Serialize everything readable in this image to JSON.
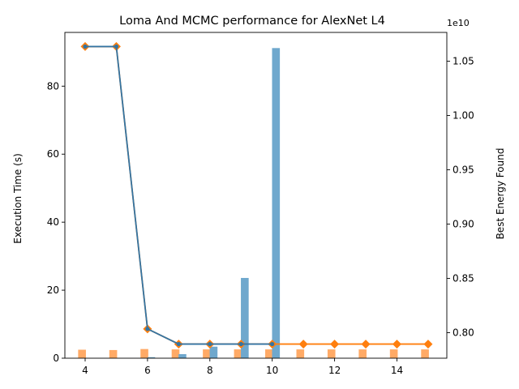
{
  "chart_data": {
    "type": "bar",
    "title": "Loma And MCMC performance for AlexNet L4",
    "ylabel_left": "Execution Time (s)",
    "ylabel_right": "Best Energy Found",
    "right_axis_multiplier": "1e10",
    "xlim": [
      3.35,
      15.6
    ],
    "ylim_left": [
      0,
      95.8
    ],
    "ylim_right": [
      0.7765,
      1.0765
    ],
    "x_ticks": [
      4,
      6,
      8,
      10,
      12,
      14
    ],
    "y_ticks_left": [
      0,
      20,
      40,
      60,
      80
    ],
    "y_ticks_right": [
      0.8,
      0.85,
      0.9,
      0.95,
      1.0,
      1.05
    ],
    "y_tick_labels_right": [
      "0.80",
      "0.85",
      "0.90",
      "0.95",
      "1.00",
      "1.05"
    ],
    "bar_width": 0.25,
    "series": [
      {
        "kind": "bar",
        "axis": "left",
        "offset": -0.1,
        "color": "#ffaa66",
        "x": [
          4,
          5,
          6,
          7,
          8,
          9,
          10,
          11,
          12,
          13,
          14,
          15
        ],
        "values": [
          2.5,
          2.4,
          2.7,
          2.6,
          2.6,
          2.6,
          2.6,
          2.6,
          2.6,
          2.6,
          2.6,
          2.6
        ]
      },
      {
        "kind": "bar",
        "axis": "left",
        "offset": 0.12,
        "color": "#6fa8cd",
        "x": [
          4,
          5,
          6,
          7,
          8,
          9,
          10
        ],
        "values": [
          0,
          0,
          0.3,
          1.2,
          3.4,
          23.6,
          91.2
        ]
      },
      {
        "kind": "line",
        "axis": "right",
        "color": "#ff7f0e",
        "marker": "diamond",
        "x": [
          4,
          5,
          6,
          7,
          8,
          9,
          10,
          11,
          12,
          13,
          14,
          15
        ],
        "values": [
          1.0635,
          1.0635,
          0.8035,
          0.7895,
          0.7895,
          0.7895,
          0.7895,
          0.7895,
          0.7895,
          0.7895,
          0.7895,
          0.7895
        ]
      },
      {
        "kind": "line",
        "axis": "right",
        "color": "#3374a3",
        "marker": "dot",
        "x": [
          4,
          5,
          6,
          7,
          8,
          9,
          10
        ],
        "values": [
          1.0635,
          1.0635,
          0.8035,
          0.7895,
          0.7895,
          0.7895,
          0.7895
        ]
      }
    ]
  }
}
